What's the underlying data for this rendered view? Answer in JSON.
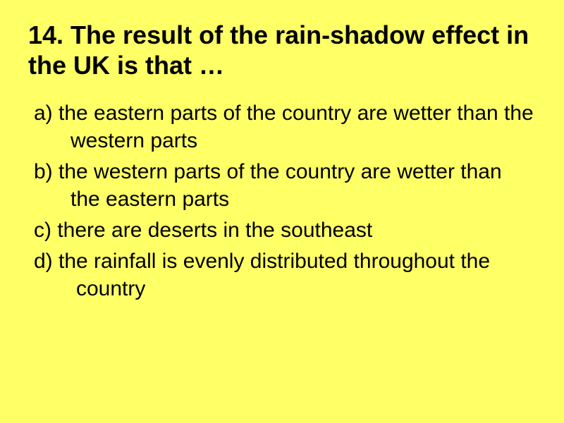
{
  "slide": {
    "background_color": "#ffff66",
    "title": {
      "text": "14. The result of the rain-shadow effect in the UK is that …",
      "fontsize": 36,
      "fontweight": "bold",
      "color": "#000000"
    },
    "options": [
      {
        "label": "a)",
        "text": "a) the eastern parts of the country are wetter than the western parts"
      },
      {
        "label": "b)",
        "text": "b) the western parts of the country are wetter than the eastern parts"
      },
      {
        "label": "c)",
        "text": "c)  there are deserts in the southeast"
      },
      {
        "label": "d)",
        "text": "d)  the rainfall is evenly distributed throughout the country"
      }
    ],
    "option_fontsize": 30,
    "option_color": "#000000"
  }
}
